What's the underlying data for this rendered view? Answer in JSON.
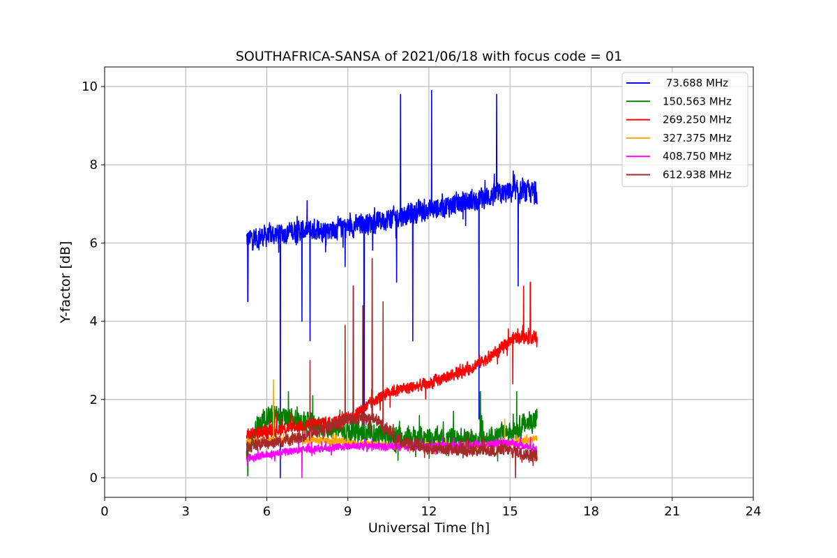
{
  "chart_data": {
    "type": "line",
    "title": "SOUTHAFRICA-SANSA of 2021/06/18 with focus code = 01",
    "xlabel": "Universal Time [h]",
    "ylabel": "Y-factor [dB]",
    "xlim": [
      0,
      24
    ],
    "ylim": [
      -0.5,
      10.5
    ],
    "xticks": [
      0,
      3,
      6,
      9,
      12,
      15,
      18,
      21,
      24
    ],
    "xtick_labels": [
      "0",
      "3",
      "6",
      "9",
      "12",
      "15",
      "18",
      "21",
      "24"
    ],
    "yticks": [
      0,
      2,
      4,
      6,
      8,
      10
    ],
    "ytick_labels": [
      "0",
      "2",
      "4",
      "6",
      "8",
      "10"
    ],
    "grid": true,
    "legend_position": "top-right",
    "series": [
      {
        "name": " 73.688 MHz",
        "color": "#0000ff",
        "x_range": [
          5.25,
          16.0
        ],
        "baseline": [
          [
            5.25,
            6.1
          ],
          [
            7.0,
            6.3
          ],
          [
            9.0,
            6.4
          ],
          [
            11.0,
            6.7
          ],
          [
            13.0,
            7.0
          ],
          [
            15.0,
            7.3
          ],
          [
            16.0,
            7.3
          ]
        ],
        "noise": 0.35,
        "spikes": [
          [
            5.3,
            4.5
          ],
          [
            6.5,
            0.0
          ],
          [
            7.3,
            4.0
          ],
          [
            7.6,
            3.5
          ],
          [
            8.9,
            5.4
          ],
          [
            9.6,
            1.0
          ],
          [
            10.8,
            5.0
          ],
          [
            10.95,
            9.8
          ],
          [
            11.4,
            3.5
          ],
          [
            12.1,
            9.9
          ],
          [
            13.85,
            1.5
          ],
          [
            14.5,
            9.8
          ],
          [
            15.3,
            4.9
          ]
        ]
      },
      {
        "name": "150.563 MHz",
        "color": "#008000",
        "x_range": [
          5.25,
          16.0
        ],
        "baseline": [
          [
            5.25,
            0.8
          ],
          [
            6.0,
            1.6
          ],
          [
            8.0,
            1.3
          ],
          [
            10.0,
            1.1
          ],
          [
            12.0,
            1.0
          ],
          [
            13.0,
            1.0
          ],
          [
            14.0,
            0.9
          ],
          [
            15.0,
            1.2
          ],
          [
            16.0,
            1.5
          ]
        ],
        "noise": 0.35,
        "spikes": [
          [
            5.3,
            0.05
          ],
          [
            6.8,
            2.2
          ],
          [
            7.7,
            2.1
          ],
          [
            13.9,
            2.2
          ],
          [
            15.25,
            2.2
          ]
        ]
      },
      {
        "name": "269.250 MHz",
        "color": "#ff0000",
        "x_range": [
          5.25,
          16.0
        ],
        "baseline": [
          [
            5.25,
            1.1
          ],
          [
            7.0,
            1.3
          ],
          [
            9.0,
            1.5
          ],
          [
            10.5,
            2.2
          ],
          [
            12.0,
            2.4
          ],
          [
            13.5,
            2.8
          ],
          [
            14.5,
            3.2
          ],
          [
            15.2,
            3.6
          ],
          [
            16.0,
            3.6
          ]
        ],
        "noise": 0.2,
        "spikes": [
          [
            15.1,
            2.4
          ],
          [
            15.75,
            5.0
          ],
          [
            15.5,
            4.9
          ]
        ]
      },
      {
        "name": "327.375 MHz",
        "color": "#ffa500",
        "x_range": [
          5.25,
          16.0
        ],
        "baseline": [
          [
            5.25,
            0.9
          ],
          [
            7.0,
            1.0
          ],
          [
            9.0,
            0.9
          ],
          [
            10.0,
            0.85
          ],
          [
            12.0,
            0.8
          ],
          [
            14.0,
            0.8
          ],
          [
            15.0,
            0.9
          ],
          [
            16.0,
            1.0
          ]
        ],
        "noise": 0.12,
        "spikes": [
          [
            6.25,
            2.5
          ],
          [
            14.8,
            1.5
          ]
        ]
      },
      {
        "name": "408.750 MHz",
        "color": "#ff00ff",
        "x_range": [
          5.25,
          16.0
        ],
        "baseline": [
          [
            5.25,
            0.5
          ],
          [
            7.0,
            0.7
          ],
          [
            9.0,
            0.8
          ],
          [
            10.0,
            0.8
          ],
          [
            12.0,
            0.8
          ],
          [
            14.0,
            0.85
          ],
          [
            15.0,
            0.9
          ],
          [
            16.0,
            0.75
          ]
        ],
        "noise": 0.12,
        "spikes": [
          [
            7.3,
            0.0
          ]
        ]
      },
      {
        "name": "612.938 MHz",
        "color": "#a52a2a",
        "x_range": [
          5.25,
          16.0
        ],
        "baseline": [
          [
            5.25,
            0.8
          ],
          [
            7.0,
            1.0
          ],
          [
            8.0,
            1.2
          ],
          [
            9.0,
            1.5
          ],
          [
            10.0,
            1.5
          ],
          [
            11.0,
            0.9
          ],
          [
            12.0,
            0.75
          ],
          [
            14.0,
            0.7
          ],
          [
            15.0,
            0.7
          ],
          [
            16.0,
            0.55
          ]
        ],
        "noise": 0.2,
        "spikes": [
          [
            7.6,
            3.0
          ],
          [
            8.9,
            3.9
          ],
          [
            9.2,
            4.9
          ],
          [
            9.55,
            4.4
          ],
          [
            9.9,
            5.6
          ],
          [
            10.3,
            4.5
          ],
          [
            15.2,
            0.0
          ]
        ]
      }
    ]
  }
}
